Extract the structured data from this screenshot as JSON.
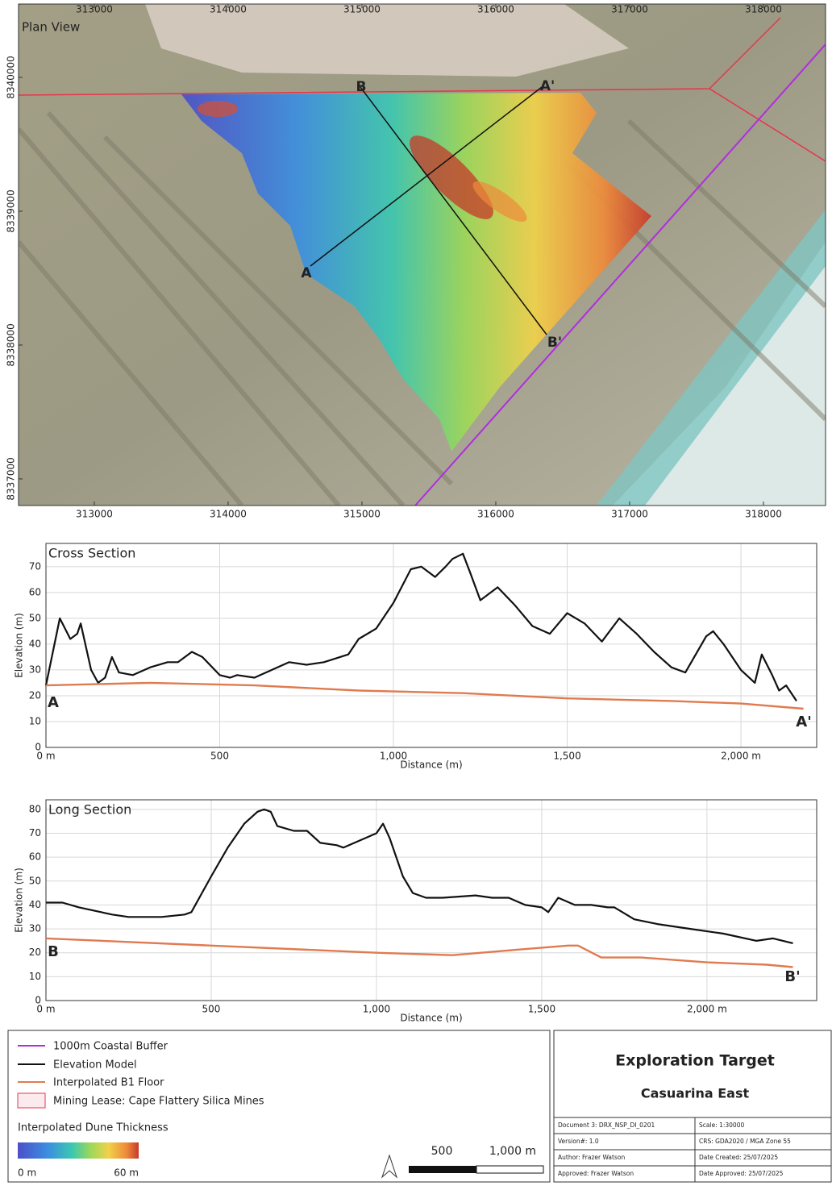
{
  "plan_view": {
    "title": "Plan View",
    "xlim": [
      312434,
      318464
    ],
    "ylim": [
      8336801,
      8340548
    ],
    "xticks": [
      313000,
      314000,
      315000,
      316000,
      317000,
      318000
    ],
    "yticks": [
      8337000,
      8338000,
      8339000,
      8340000
    ],
    "section_labels": [
      "A",
      "A'",
      "B",
      "B'"
    ]
  },
  "chart_data": [
    {
      "type": "line",
      "title": "Cross Section",
      "xlabel": "Distance (m)",
      "ylabel": "Elevation (m)",
      "xlim": [
        0,
        2218
      ],
      "ylim": [
        0,
        79
      ],
      "grid": true,
      "xticks": [
        {
          "value": 0,
          "label": "0 m"
        },
        500,
        {
          "value": 1000,
          "label": "1,000"
        },
        {
          "value": 1500,
          "label": "1,500"
        },
        {
          "value": 2000,
          "label": "2,000 m"
        }
      ],
      "yticks": [
        0,
        10,
        20,
        30,
        40,
        50,
        60,
        70
      ],
      "annotations": [
        "A",
        "A'"
      ],
      "series": [
        {
          "color": "#111111",
          "x": [
            0,
            40,
            70,
            90,
            100,
            130,
            150,
            170,
            190,
            210,
            250,
            300,
            350,
            380,
            420,
            450,
            500,
            530,
            550,
            600,
            700,
            750,
            800,
            870,
            900,
            950,
            1000,
            1050,
            1080,
            1120,
            1150,
            1170,
            1200,
            1220,
            1250,
            1300,
            1350,
            1400,
            1450,
            1500,
            1550,
            1600,
            1650,
            1700,
            1750,
            1800,
            1840,
            1900,
            1920,
            1950,
            2000,
            2040,
            2060,
            2090,
            2110,
            2130,
            2160
          ],
          "values": [
            24,
            50,
            42,
            44,
            48,
            30,
            25,
            27,
            35,
            29,
            28,
            31,
            33,
            33,
            37,
            35,
            28,
            27,
            28,
            27,
            33,
            32,
            33,
            36,
            42,
            46,
            56,
            69,
            70,
            66,
            70,
            73,
            75,
            68,
            57,
            62,
            55,
            47,
            44,
            52,
            48,
            41,
            50,
            44,
            37,
            31,
            29,
            43,
            45,
            40,
            30,
            25,
            36,
            28,
            22,
            24,
            18
          ]
        },
        {
          "color": "#e07b4f",
          "x": [
            0,
            300,
            600,
            900,
            1200,
            1500,
            1800,
            2000,
            2180
          ],
          "values": [
            24,
            25,
            24,
            22,
            21,
            19,
            18,
            17,
            15
          ]
        }
      ]
    },
    {
      "type": "line",
      "title": "Long Section",
      "xlabel": "Distance (m)",
      "ylabel": "Elevation (m)",
      "xlim": [
        0,
        2332
      ],
      "ylim": [
        0,
        84
      ],
      "grid": true,
      "xticks": [
        {
          "value": 0,
          "label": "0 m"
        },
        500,
        {
          "value": 1000,
          "label": "1,000"
        },
        {
          "value": 1500,
          "label": "1,500"
        },
        {
          "value": 2000,
          "label": "2,000 m"
        }
      ],
      "yticks": [
        0,
        10,
        20,
        30,
        40,
        50,
        60,
        70,
        80
      ],
      "annotations": [
        "B",
        "B'"
      ],
      "series": [
        {
          "color": "#111111",
          "x": [
            0,
            50,
            100,
            200,
            250,
            350,
            420,
            440,
            500,
            550,
            600,
            640,
            660,
            680,
            700,
            750,
            790,
            830,
            880,
            900,
            950,
            1000,
            1020,
            1040,
            1080,
            1110,
            1150,
            1200,
            1300,
            1350,
            1400,
            1450,
            1500,
            1520,
            1550,
            1600,
            1650,
            1700,
            1720,
            1780,
            1850,
            1950,
            2050,
            2150,
            2200,
            2260
          ],
          "values": [
            41,
            41,
            39,
            36,
            35,
            35,
            36,
            37,
            52,
            64,
            74,
            79,
            80,
            79,
            73,
            71,
            71,
            66,
            65,
            64,
            67,
            70,
            74,
            68,
            52,
            45,
            43,
            43,
            44,
            43,
            43,
            40,
            39,
            37,
            43,
            40,
            40,
            39,
            39,
            34,
            32,
            30,
            28,
            25,
            26,
            24
          ]
        },
        {
          "color": "#e07b4f",
          "x": [
            0,
            500,
            1000,
            1230,
            1400,
            1580,
            1610,
            1680,
            1800,
            2000,
            2180,
            2260
          ],
          "values": [
            26,
            23,
            20,
            19,
            21,
            23,
            23,
            18,
            18,
            16,
            15,
            14
          ]
        }
      ]
    }
  ],
  "legend": {
    "items": [
      "1000m Coastal Buffer",
      "Elevation Model",
      "Interpolated B1 Floor",
      "Mining Lease: Cape Flattery Silica Mines"
    ],
    "colorbar_title": "Interpolated Dune Thickness",
    "colorbar_min": "0 m",
    "colorbar_max": "60 m",
    "scale_labels": [
      "500",
      "1,000 m"
    ]
  },
  "title_block": {
    "title": "Exploration Target",
    "subtitle": "Casuarina East",
    "rows": [
      [
        "Document 3: DRX_NSP_DI_0201",
        "Scale: 1:30000"
      ],
      [
        "Version#: 1.0",
        "CRS: GDA2020 / MGA Zone 55"
      ],
      [
        "Author: Frazer Watson",
        "Date Created: 25/07/2025"
      ],
      [
        "Approved: Frazer Watson",
        "Date Approved: 25/07/2025"
      ]
    ]
  }
}
